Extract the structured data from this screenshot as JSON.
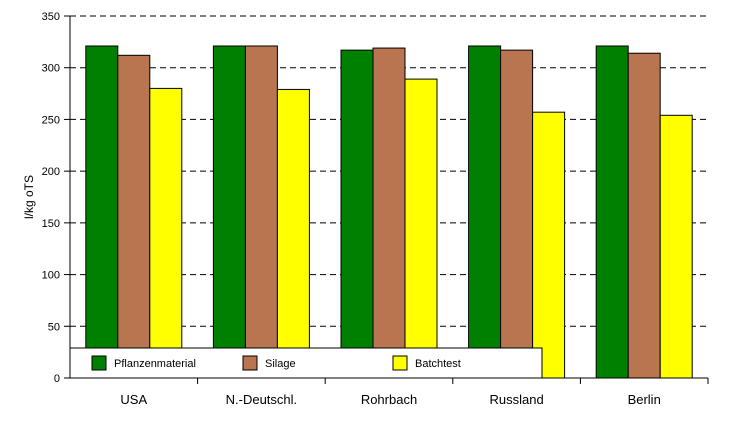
{
  "chart_data": {
    "type": "bar",
    "ylabel": "l/kg oTS",
    "ylim": [
      0,
      350
    ],
    "yticks": [
      0,
      50,
      100,
      150,
      200,
      250,
      300,
      350
    ],
    "grid": "horizontal-dashed",
    "legend_position": "bottom-left-inside",
    "categories": [
      "USA",
      "N.-Deutschl.",
      "Rohrbach",
      "Russland",
      "Berlin"
    ],
    "series": [
      {
        "name": "Pflanzenmaterial",
        "color": "#008000",
        "values": [
          321,
          321,
          317,
          321,
          321
        ]
      },
      {
        "name": "Silage",
        "color": "#b87550",
        "values": [
          312,
          321,
          319,
          317,
          314
        ]
      },
      {
        "name": "Batchtest",
        "color": "#ffff00",
        "values": [
          280,
          279,
          289,
          257,
          254
        ]
      }
    ]
  }
}
